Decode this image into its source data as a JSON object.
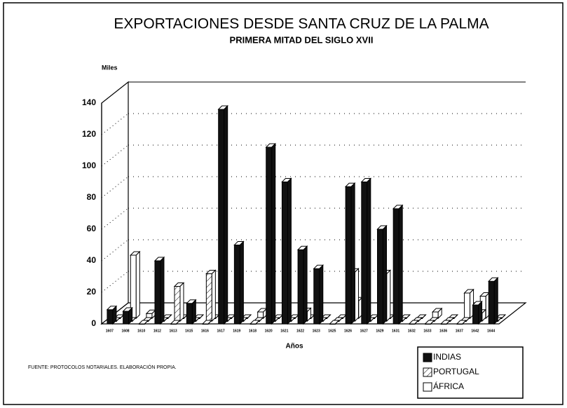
{
  "chart_data": {
    "type": "bar3d",
    "title": "EXPORTACIONES DESDE SANTA CRUZ DE LA PALMA",
    "subtitle": "PRIMERA MITAD DEL SIGLO XVII",
    "y_label": "Miles",
    "x_label": "Años",
    "source": "FUENTE: PROTOCOLOS NOTARIALES. ELABORACIÓN PROPIA.",
    "categories": [
      "1607",
      "1608",
      "1610",
      "1612",
      "1613",
      "1615",
      "1616",
      "1617",
      "1619",
      "1618",
      "1620",
      "1621",
      "1622",
      "1623",
      "1625",
      "1626",
      "1627",
      "1629",
      "1631",
      "1632",
      "1633",
      "1636",
      "1637",
      "1642",
      "1644"
    ],
    "series": [
      {
        "name": "ÁFRICA",
        "color": "#ffffff",
        "values": [
          0,
          40,
          3,
          0,
          0,
          0,
          0,
          0,
          0,
          4,
          0,
          0,
          0,
          0,
          0,
          11,
          0,
          0,
          0,
          0,
          4,
          0,
          16,
          14,
          0
        ]
      },
      {
        "name": "PORTUGAL",
        "color": "#ffffff",
        "pattern": "hatch",
        "values": [
          0,
          0,
          0,
          0,
          22,
          0,
          30,
          0,
          0,
          0,
          0,
          0,
          6,
          0,
          0,
          31,
          0,
          30,
          0,
          0,
          0,
          0,
          0,
          5,
          0
        ]
      },
      {
        "name": "INDIAS",
        "color": "#111111",
        "values": [
          9,
          8,
          0,
          40,
          0,
          13,
          0,
          136,
          50,
          0,
          112,
          90,
          47,
          35,
          0,
          87,
          90,
          60,
          73,
          0,
          0,
          0,
          0,
          12,
          27
        ]
      }
    ],
    "legend_order": [
      2,
      1,
      0
    ],
    "ylim": [
      0,
      140
    ],
    "yticks": [
      0,
      20,
      40,
      60,
      80,
      100,
      120,
      140
    ],
    "grid": true
  }
}
